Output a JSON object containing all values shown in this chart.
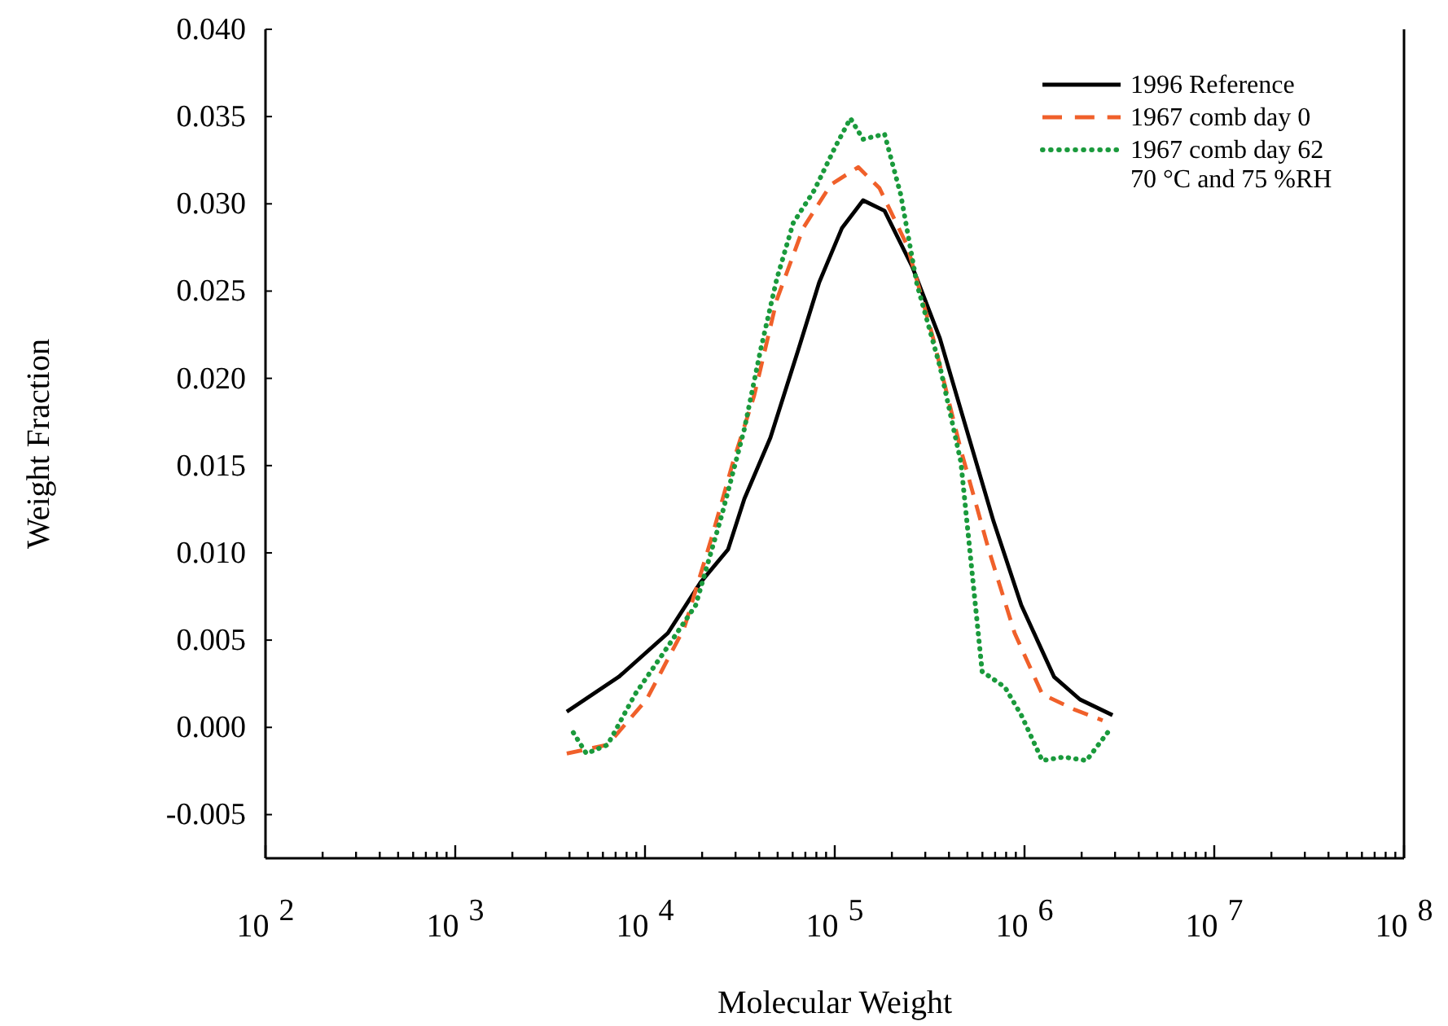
{
  "chart_data": {
    "type": "line",
    "xlabel": "Molecular Weight",
    "ylabel": "Weight Fraction",
    "log": "x",
    "legend": "top right",
    "grid": false,
    "xlim": [
      100,
      100000000
    ],
    "xticks": [
      {
        "value": 100,
        "label": "10$^{2}$"
      },
      {
        "value": 1000,
        "label": "10$^{3}$"
      },
      {
        "value": 10000,
        "label": "10$^{4}$"
      },
      {
        "value": 100000,
        "label": "10$^{5}$"
      },
      {
        "value": 1000000,
        "label": "10$^{6}$"
      },
      {
        "value": 10000000,
        "label": "10$^{7}$"
      },
      {
        "value": 100000000,
        "label": "10$^{8}$"
      },
      {
        "value": 200,
        "label": null
      },
      {
        "value": 300,
        "label": null
      },
      {
        "value": 400,
        "label": null
      },
      {
        "value": 500,
        "label": null
      },
      {
        "value": 600,
        "label": null
      },
      {
        "value": 700,
        "label": null
      },
      {
        "value": 800,
        "label": null
      },
      {
        "value": 900,
        "label": null
      },
      {
        "value": 2000,
        "label": null
      },
      {
        "value": 3000,
        "label": null
      },
      {
        "value": 4000,
        "label": null
      },
      {
        "value": 5000,
        "label": null
      },
      {
        "value": 6000,
        "label": null
      },
      {
        "value": 7000,
        "label": null
      },
      {
        "value": 8000,
        "label": null
      },
      {
        "value": 9000,
        "label": null
      },
      {
        "value": 20000,
        "label": null
      },
      {
        "value": 30000,
        "label": null
      },
      {
        "value": 40000,
        "label": null
      },
      {
        "value": 50000,
        "label": null
      },
      {
        "value": 60000,
        "label": null
      },
      {
        "value": 70000,
        "label": null
      },
      {
        "value": 80000,
        "label": null
      },
      {
        "value": 90000,
        "label": null
      },
      {
        "value": 200000,
        "label": null
      },
      {
        "value": 300000,
        "label": null
      },
      {
        "value": 400000,
        "label": null
      },
      {
        "value": 500000,
        "label": null
      },
      {
        "value": 600000,
        "label": null
      },
      {
        "value": 700000,
        "label": null
      },
      {
        "value": 800000,
        "label": null
      },
      {
        "value": 900000,
        "label": null
      },
      {
        "value": 2000000,
        "label": null
      },
      {
        "value": 3000000,
        "label": null
      },
      {
        "value": 4000000,
        "label": null
      },
      {
        "value": 5000000,
        "label": null
      },
      {
        "value": 6000000,
        "label": null
      },
      {
        "value": 7000000,
        "label": null
      },
      {
        "value": 8000000,
        "label": null
      },
      {
        "value": 9000000,
        "label": null
      },
      {
        "value": 20000000,
        "label": null
      },
      {
        "value": 30000000,
        "label": null
      },
      {
        "value": 40000000,
        "label": null
      },
      {
        "value": 50000000,
        "label": null
      },
      {
        "value": 60000000,
        "label": null
      },
      {
        "value": 70000000,
        "label": null
      },
      {
        "value": 80000000,
        "label": null
      },
      {
        "value": 90000000,
        "label": null
      }
    ],
    "ylim": [
      -0.0075,
      0.04
    ],
    "yticks": [
      {
        "value": -0.005,
        "label": "-0.005"
      },
      {
        "value": 0,
        "label": "0.000"
      },
      {
        "value": 0.005,
        "label": "0.005"
      },
      {
        "value": 0.01,
        "label": "0.010"
      },
      {
        "value": 0.015,
        "label": "0.015"
      },
      {
        "value": 0.02,
        "label": "0.020"
      },
      {
        "value": 0.025,
        "label": "0.025"
      },
      {
        "value": 0.03,
        "label": "0.030"
      },
      {
        "value": 0.035,
        "label": "0.035"
      },
      {
        "value": 0.04,
        "label": "0.040"
      }
    ],
    "series": [
      {
        "name": "1996 Reference",
        "color": "#000000",
        "line_style": "solid",
        "x": [
          3870,
          7290,
          13200,
          19600,
          27400,
          33400,
          45800,
          64100,
          82800,
          109000,
          141000,
          183000,
          256000,
          358000,
          491000,
          687000,
          962000,
          1430000,
          1960000,
          2910000
        ],
        "values": [
          0.0009,
          0.0029,
          0.0054,
          0.0083,
          0.0102,
          0.0131,
          0.0166,
          0.0216,
          0.0255,
          0.0286,
          0.0302,
          0.0296,
          0.0264,
          0.0223,
          0.0172,
          0.0118,
          0.007,
          0.0029,
          0.0016,
          0.0007
        ]
      },
      {
        "name": "1967 comb day 0",
        "color": "#f0602a",
        "line_style": "dashed",
        "x": [
          3870,
          6350,
          10200,
          16100,
          22500,
          29100,
          37600,
          49500,
          68100,
          95300,
          133000,
          172000,
          241000,
          330000,
          462000,
          647000,
          887000,
          1240000,
          1850000,
          2580000
        ],
        "values": [
          -0.0015,
          -0.001,
          0.0016,
          0.0057,
          0.0109,
          0.0152,
          0.019,
          0.0245,
          0.0286,
          0.0311,
          0.0321,
          0.0309,
          0.0276,
          0.0223,
          0.0159,
          0.0102,
          0.0054,
          0.0019,
          0.001,
          0.0004
        ]
      },
      {
        "name": "1967 comb day 62\n70 °C and 75 %RH",
        "color": "#1a9a3c",
        "line_style": "dotted",
        "x": [
          4190,
          4910,
          6350,
          8870,
          12400,
          18500,
          25300,
          33400,
          40600,
          49500,
          60400,
          78200,
          101000,
          121000,
          141000,
          183000,
          223000,
          271000,
          358000,
          462000,
          598000,
          789000,
          962000,
          1240000,
          1610000,
          2120000,
          2740000
        ],
        "values": [
          -0.0003,
          -0.0015,
          -0.001,
          0.0019,
          0.0042,
          0.007,
          0.0121,
          0.0171,
          0.0216,
          0.0257,
          0.0289,
          0.0308,
          0.0333,
          0.0349,
          0.0337,
          0.034,
          0.0305,
          0.0254,
          0.0207,
          0.0152,
          0.0032,
          0.0023,
          0.0007,
          -0.0019,
          -0.0017,
          -0.0019,
          -0.0003
        ]
      }
    ]
  }
}
